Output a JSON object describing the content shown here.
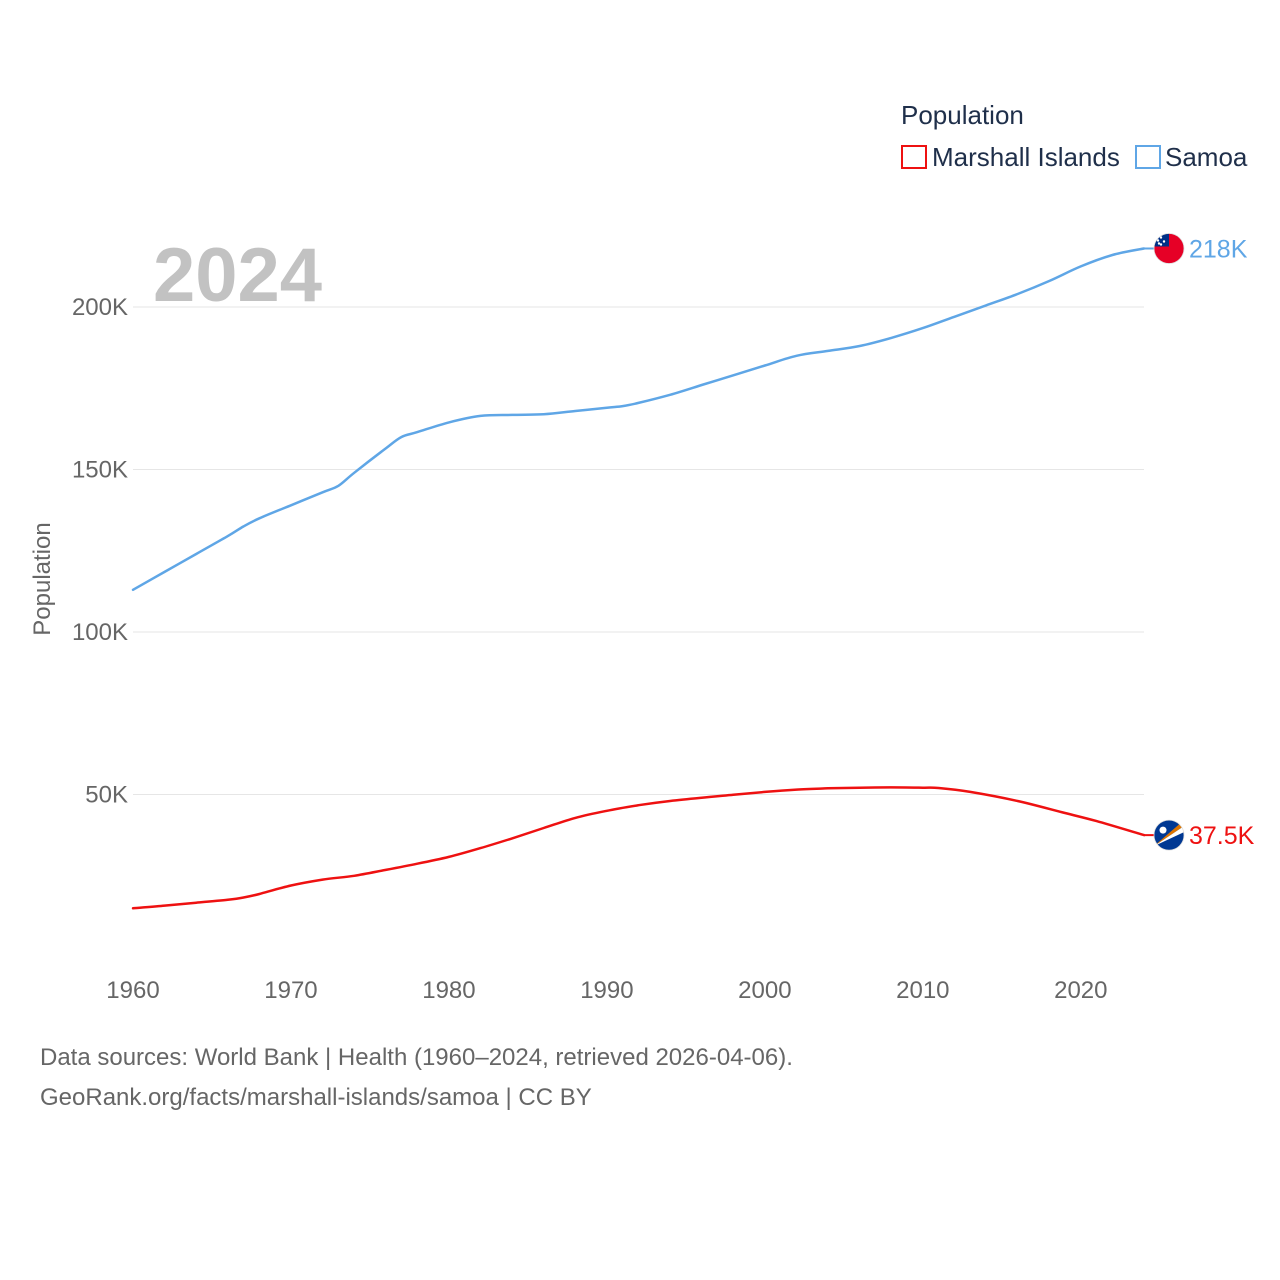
{
  "chart_data": {
    "type": "line",
    "ylabel": "Population",
    "xlim": [
      1960,
      2024
    ],
    "ylim": [
      0,
      225000
    ],
    "x_ticks": [
      1960,
      1970,
      1980,
      1990,
      2000,
      2010,
      2020
    ],
    "x_tick_labels": [
      "1960",
      "1970",
      "1980",
      "1990",
      "2000",
      "2010",
      "2020"
    ],
    "y_ticks": [
      50000,
      100000,
      150000,
      200000
    ],
    "y_tick_labels": [
      "50K",
      "100K",
      "150K",
      "200K"
    ],
    "grid": true,
    "year_label": "2024",
    "legend": {
      "title": "Population",
      "position": "top-right",
      "entries": [
        "Marshall Islands",
        "Samoa"
      ]
    },
    "series": [
      {
        "name": "Marshall Islands",
        "color": "#ee1111",
        "end_label": "37.5K",
        "flag": "marshall-islands-flag",
        "points": [
          [
            1960,
            15000
          ],
          [
            1962,
            15800
          ],
          [
            1964,
            16700
          ],
          [
            1966,
            17600
          ],
          [
            1967,
            18300
          ],
          [
            1968,
            19400
          ],
          [
            1970,
            22000
          ],
          [
            1972,
            23800
          ],
          [
            1974,
            25000
          ],
          [
            1976,
            26800
          ],
          [
            1978,
            28700
          ],
          [
            1980,
            30800
          ],
          [
            1982,
            33500
          ],
          [
            1984,
            36500
          ],
          [
            1986,
            39700
          ],
          [
            1988,
            42800
          ],
          [
            1990,
            45000
          ],
          [
            1992,
            46700
          ],
          [
            1994,
            48000
          ],
          [
            1996,
            49000
          ],
          [
            1998,
            49900
          ],
          [
            2000,
            50800
          ],
          [
            2002,
            51500
          ],
          [
            2004,
            51900
          ],
          [
            2006,
            52100
          ],
          [
            2008,
            52200
          ],
          [
            2010,
            52100
          ],
          [
            2011,
            52000
          ],
          [
            2013,
            50800
          ],
          [
            2016,
            48000
          ],
          [
            2019,
            44300
          ],
          [
            2021,
            41800
          ],
          [
            2024,
            37500
          ]
        ]
      },
      {
        "name": "Samoa",
        "color": "#5fa6e6",
        "end_label": "218K",
        "flag": "samoa-flag",
        "points": [
          [
            1960,
            113000
          ],
          [
            1962,
            118500
          ],
          [
            1964,
            124000
          ],
          [
            1966,
            129500
          ],
          [
            1967,
            132500
          ],
          [
            1968,
            135000
          ],
          [
            1970,
            139000
          ],
          [
            1972,
            143000
          ],
          [
            1973,
            145000
          ],
          [
            1974,
            149000
          ],
          [
            1976,
            156500
          ],
          [
            1977,
            160000
          ],
          [
            1978,
            161500
          ],
          [
            1980,
            164500
          ],
          [
            1982,
            166500
          ],
          [
            1984,
            166800
          ],
          [
            1986,
            167000
          ],
          [
            1988,
            168000
          ],
          [
            1990,
            169000
          ],
          [
            1991,
            169500
          ],
          [
            1992,
            170500
          ],
          [
            1994,
            173000
          ],
          [
            1996,
            176000
          ],
          [
            1998,
            179000
          ],
          [
            2000,
            182000
          ],
          [
            2002,
            185000
          ],
          [
            2004,
            186500
          ],
          [
            2006,
            188000
          ],
          [
            2008,
            190500
          ],
          [
            2010,
            193500
          ],
          [
            2012,
            197000
          ],
          [
            2014,
            200500
          ],
          [
            2016,
            204000
          ],
          [
            2018,
            208000
          ],
          [
            2020,
            212500
          ],
          [
            2022,
            216000
          ],
          [
            2024,
            218000
          ]
        ]
      }
    ]
  },
  "footer": {
    "source_line": "Data sources: World Bank | Health (1960–2024, retrieved 2026-04-06).",
    "credit_line": "GeoRank.org/facts/marshall-islands/samoa | CC BY"
  }
}
